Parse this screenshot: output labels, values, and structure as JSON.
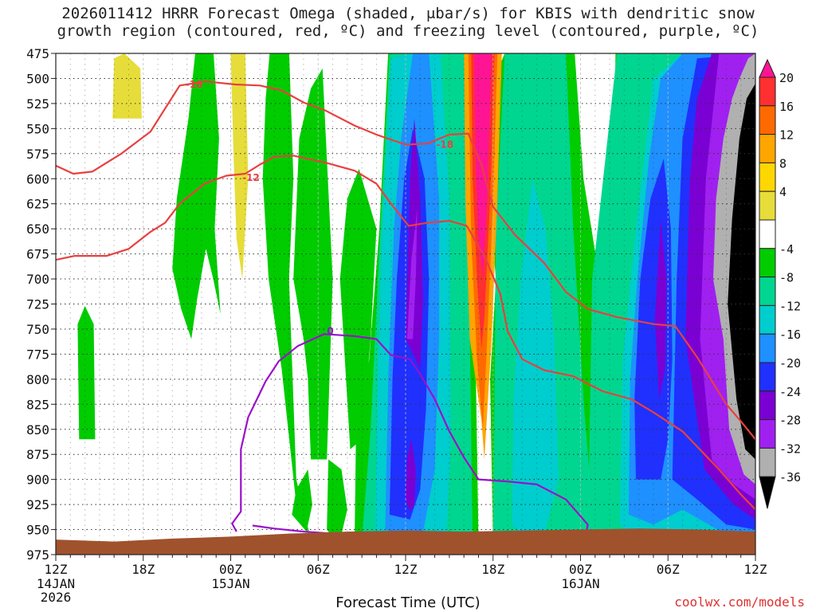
{
  "chart_data": {
    "type": "heatmap",
    "title_line1": "2026011412 HRRR Forecast Omega (shaded, μbar/s) for KBIS with dendritic snow",
    "title_line2": "growth region (contoured, red, ºC) and freezing level (contoured, purple, ºC)",
    "xlabel": "Forecast Time (UTC)",
    "credit": "coolwx.com/models",
    "x_ticks": [
      {
        "hour": 0,
        "label": "12Z",
        "sub1": "14JAN",
        "sub2": "2026"
      },
      {
        "hour": 6,
        "label": "18Z",
        "sub1": "",
        "sub2": ""
      },
      {
        "hour": 12,
        "label": "00Z",
        "sub1": "15JAN",
        "sub2": ""
      },
      {
        "hour": 18,
        "label": "06Z",
        "sub1": "",
        "sub2": ""
      },
      {
        "hour": 24,
        "label": "12Z",
        "sub1": "",
        "sub2": ""
      },
      {
        "hour": 30,
        "label": "18Z",
        "sub1": "",
        "sub2": ""
      },
      {
        "hour": 36,
        "label": "00Z",
        "sub1": "16JAN",
        "sub2": ""
      },
      {
        "hour": 42,
        "label": "06Z",
        "sub1": "",
        "sub2": ""
      },
      {
        "hour": 48,
        "label": "12Z",
        "sub1": "",
        "sub2": ""
      }
    ],
    "x_range_hours": [
      0,
      48
    ],
    "y_ticks_mb": [
      475,
      500,
      525,
      550,
      575,
      600,
      625,
      650,
      675,
      700,
      725,
      750,
      775,
      800,
      825,
      850,
      875,
      900,
      925,
      950,
      975
    ],
    "y_range_mb": [
      475,
      975
    ],
    "grid": true,
    "colorbar": {
      "ticks": [
        "20",
        "16",
        "12",
        "8",
        "4",
        "-4",
        "-8",
        "-12",
        "-16",
        "-20",
        "-24",
        "-28",
        "-32",
        "-36"
      ],
      "colors": [
        "#ff1493",
        "#ff3030",
        "#ff6a00",
        "#ffa500",
        "#ffd700",
        "#e6dd3a",
        "#ffffff",
        "#00cc00",
        "#00d68f",
        "#00cdcd",
        "#1e90ff",
        "#2030ff",
        "#7b00d4",
        "#a020f0",
        "#b0b0b0",
        "#000000"
      ]
    },
    "omega_levels": [
      {
        "value": -4,
        "color": "#00cc00"
      },
      {
        "value": -8,
        "color": "#00d68f"
      },
      {
        "value": -12,
        "color": "#00cdcd"
      },
      {
        "value": -16,
        "color": "#1e90ff"
      },
      {
        "value": -20,
        "color": "#2030ff"
      },
      {
        "value": -24,
        "color": "#7b00d4"
      },
      {
        "value": -28,
        "color": "#a020f0"
      },
      {
        "value": -32,
        "color": "#b0b0b0"
      },
      {
        "value": -36,
        "color": "#000000"
      },
      {
        "value": 4,
        "color": "#e6dd3a"
      },
      {
        "value": 8,
        "color": "#ffa500"
      },
      {
        "value": 12,
        "color": "#ff6a00"
      },
      {
        "value": 16,
        "color": "#ff3030"
      },
      {
        "value": 20,
        "color": "#ff1493"
      }
    ],
    "contours": {
      "dgz_top_minus18": {
        "label": "-18",
        "color": "#e84040",
        "points": [
          [
            0,
            587
          ],
          [
            1.2,
            595
          ],
          [
            2.5,
            593
          ],
          [
            4.5,
            575
          ],
          [
            6.5,
            553
          ],
          [
            7.5,
            530
          ],
          [
            8.5,
            507
          ],
          [
            10.3,
            503
          ],
          [
            12.3,
            506
          ],
          [
            14,
            507
          ],
          [
            15.5,
            512
          ],
          [
            17,
            524
          ],
          [
            18.5,
            532
          ],
          [
            20.5,
            547
          ],
          [
            22,
            556
          ],
          [
            24,
            566
          ],
          [
            25.5,
            565
          ],
          [
            27,
            556
          ],
          [
            28.3,
            555
          ],
          [
            29.2,
            586
          ],
          [
            30,
            628
          ],
          [
            31.5,
            656
          ],
          [
            33.5,
            684
          ],
          [
            35,
            713
          ],
          [
            36.5,
            730
          ],
          [
            38.5,
            738
          ],
          [
            41,
            745
          ],
          [
            42.5,
            747
          ],
          [
            44,
            778
          ],
          [
            46,
            825
          ],
          [
            47,
            842
          ],
          [
            48,
            860
          ]
        ]
      },
      "dgz_bottom_minus12": {
        "label": "-12",
        "color": "#e84040",
        "points": [
          [
            0,
            681
          ],
          [
            1.3,
            677
          ],
          [
            3.5,
            677
          ],
          [
            5,
            670
          ],
          [
            6.5,
            653
          ],
          [
            7.5,
            644
          ],
          [
            8.5,
            625
          ],
          [
            10.2,
            605
          ],
          [
            11.7,
            597
          ],
          [
            13,
            595
          ],
          [
            14,
            586
          ],
          [
            15,
            578
          ],
          [
            16.3,
            577
          ],
          [
            18.5,
            584
          ],
          [
            20.5,
            592
          ],
          [
            22,
            605
          ],
          [
            23,
            625
          ],
          [
            24.2,
            647
          ],
          [
            25.5,
            644
          ],
          [
            27,
            642
          ],
          [
            28.2,
            647
          ],
          [
            29.5,
            680
          ],
          [
            30.5,
            715
          ],
          [
            31,
            752
          ],
          [
            32,
            780
          ],
          [
            33.5,
            791
          ],
          [
            35.5,
            797
          ],
          [
            37.5,
            812
          ],
          [
            39.5,
            820
          ],
          [
            41,
            833
          ],
          [
            43,
            852
          ],
          [
            45.5,
            890
          ],
          [
            47,
            915
          ],
          [
            48,
            930
          ]
        ]
      },
      "freezing_level_0C": {
        "label": "0",
        "color": "#9a10cc",
        "points": [
          [
            12.4,
            952
          ],
          [
            12.1,
            944
          ],
          [
            12.7,
            932
          ],
          [
            12.7,
            915
          ],
          [
            12.7,
            870
          ],
          [
            13.2,
            838
          ],
          [
            14.4,
            802
          ],
          [
            15.3,
            782
          ],
          [
            16.6,
            767
          ],
          [
            18.4,
            755
          ],
          [
            20.5,
            757
          ],
          [
            22,
            760
          ],
          [
            23,
            776
          ],
          [
            24.3,
            780
          ],
          [
            25,
            795
          ],
          [
            26,
            820
          ],
          [
            27,
            852
          ],
          [
            28,
            878
          ],
          [
            29,
            900
          ],
          [
            31,
            902
          ],
          [
            33,
            905
          ],
          [
            35,
            920
          ],
          [
            36.5,
            945
          ],
          [
            36.4,
            953
          ],
          [
            34,
            958
          ],
          [
            30,
            960
          ],
          [
            25,
            958
          ],
          [
            20,
            955
          ],
          [
            17,
            952
          ],
          [
            15,
            949
          ],
          [
            13.5,
            946
          ]
        ]
      }
    }
  }
}
